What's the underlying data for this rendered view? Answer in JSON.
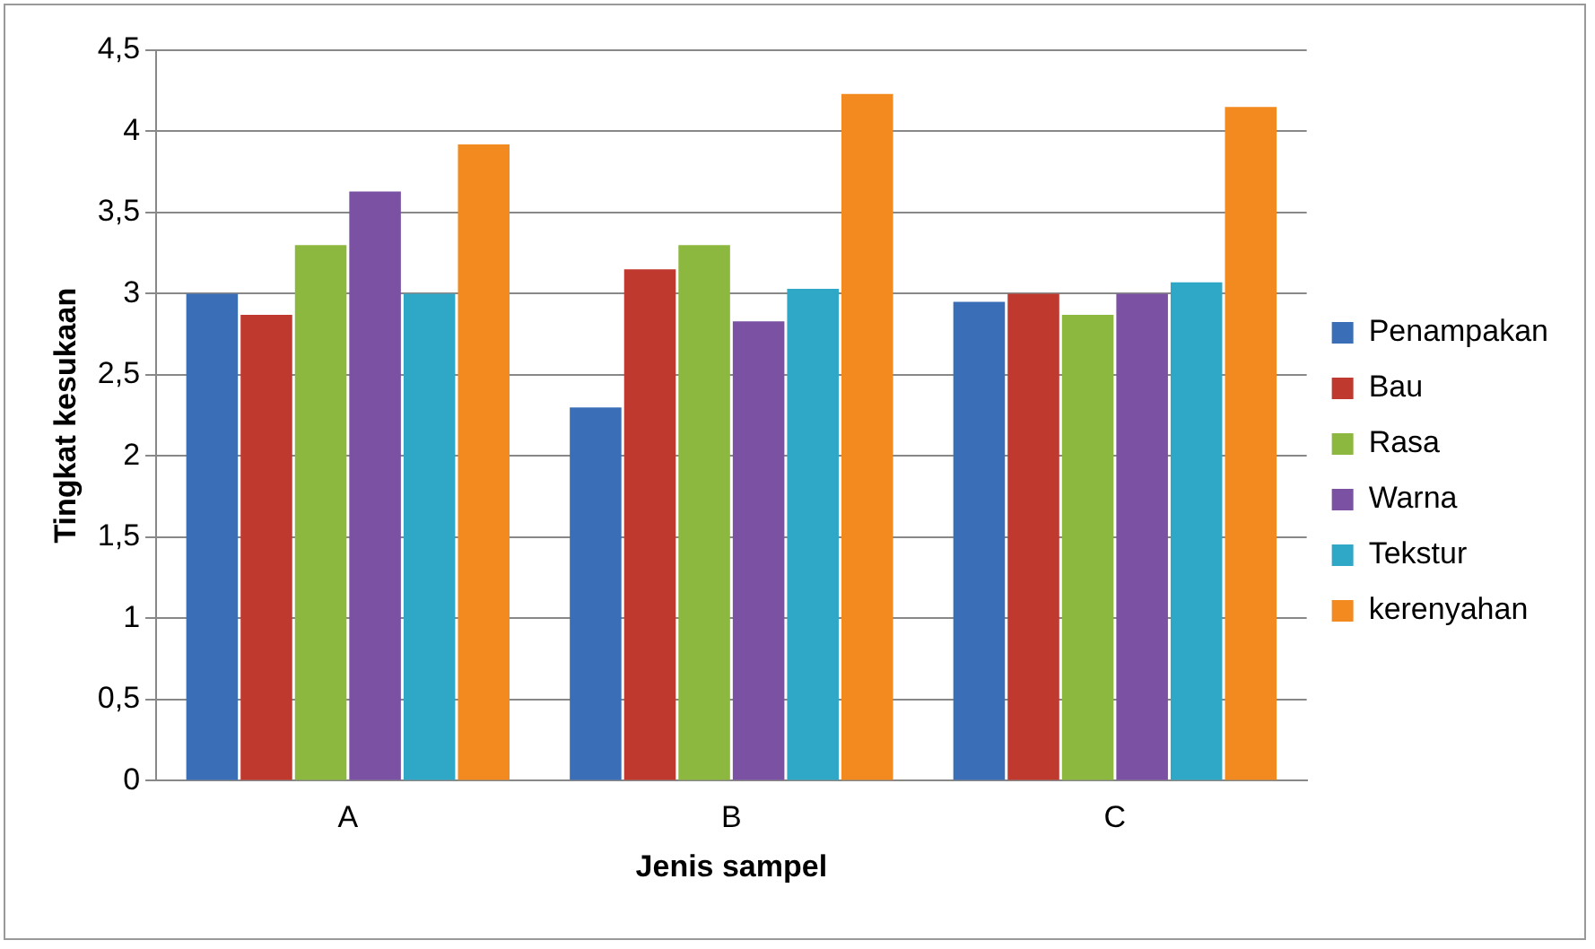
{
  "chart_data": {
    "type": "bar",
    "xlabel": "Jenis sampel",
    "ylabel": "Tingkat kesukaan",
    "categories": [
      "A",
      "B",
      "C"
    ],
    "series": [
      {
        "name": "Penampakan",
        "color": "#3a6fb8",
        "values": [
          3.0,
          2.3,
          2.95
        ]
      },
      {
        "name": "Bau",
        "color": "#c0392f",
        "values": [
          2.87,
          3.15,
          3.0
        ]
      },
      {
        "name": "Rasa",
        "color": "#8db83f",
        "values": [
          3.3,
          3.3,
          2.87
        ]
      },
      {
        "name": "Warna",
        "color": "#7b52a3",
        "values": [
          3.63,
          2.83,
          3.0
        ]
      },
      {
        "name": "Tekstur",
        "color": "#2fa8c8",
        "values": [
          3.0,
          3.03,
          3.07
        ]
      },
      {
        "name": "kerenyahan",
        "color": "#f28a1f",
        "values": [
          3.92,
          4.23,
          4.15
        ]
      }
    ],
    "ylim": [
      0,
      4.5
    ],
    "yticks": [
      {
        "value": 0,
        "label": "0"
      },
      {
        "value": 0.5,
        "label": "0,5"
      },
      {
        "value": 1,
        "label": "1"
      },
      {
        "value": 1.5,
        "label": "1,5"
      },
      {
        "value": 2,
        "label": "2"
      },
      {
        "value": 2.5,
        "label": "2,5"
      },
      {
        "value": 3,
        "label": "3"
      },
      {
        "value": 3.5,
        "label": "3,5"
      },
      {
        "value": 4,
        "label": "4"
      },
      {
        "value": 4.5,
        "label": "4,5"
      }
    ],
    "grid": "y",
    "legend": "right"
  }
}
